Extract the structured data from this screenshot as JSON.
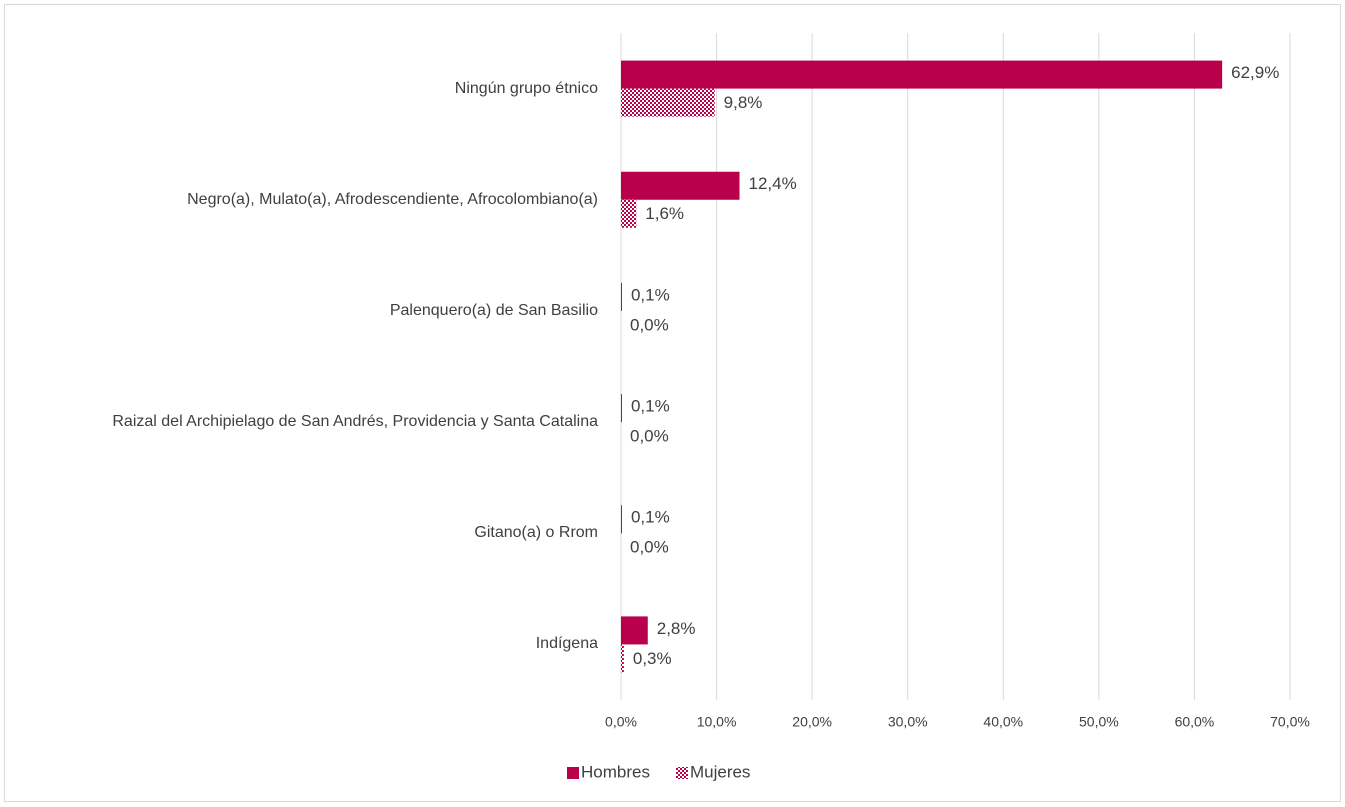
{
  "chart_data": {
    "type": "barh",
    "categories": [
      "Ningún grupo étnico",
      "Negro(a), Mulato(a), Afrodescendiente, Afrocolombiano(a)",
      "Palenquero(a) de San Basilio",
      "Raizal del Archipielago de San Andrés, Providencia y Santa Catalina",
      "Gitano(a) o Rrom",
      "Indígena"
    ],
    "series": [
      {
        "name": "Hombres",
        "color": "#b8004b",
        "pattern": "solid",
        "values": [
          62.9,
          12.4,
          0.1,
          0.1,
          0.1,
          2.8
        ],
        "value_labels": [
          "62,9%",
          "12,4%",
          "0,1%",
          "0,1%",
          "0,1%",
          "2,8%"
        ]
      },
      {
        "name": "Mujeres",
        "color": "#b8004b",
        "pattern": "checker",
        "values": [
          9.8,
          1.6,
          0.0,
          0.0,
          0.0,
          0.3
        ],
        "value_labels": [
          "9,8%",
          "1,6%",
          "0,0%",
          "0,0%",
          "0,0%",
          "0,3%"
        ]
      }
    ],
    "xlim": [
      0,
      70
    ],
    "xticks": [
      {
        "value": 0,
        "label": "0,0%"
      },
      {
        "value": 10,
        "label": "10,0%"
      },
      {
        "value": 20,
        "label": "20,0%"
      },
      {
        "value": 30,
        "label": "30,0%"
      },
      {
        "value": 40,
        "label": "40,0%"
      },
      {
        "value": 50,
        "label": "50,0%"
      },
      {
        "value": 60,
        "label": "60,0%"
      },
      {
        "value": 70,
        "label": "70,0%"
      }
    ],
    "grid": true,
    "legend": "bottom"
  }
}
